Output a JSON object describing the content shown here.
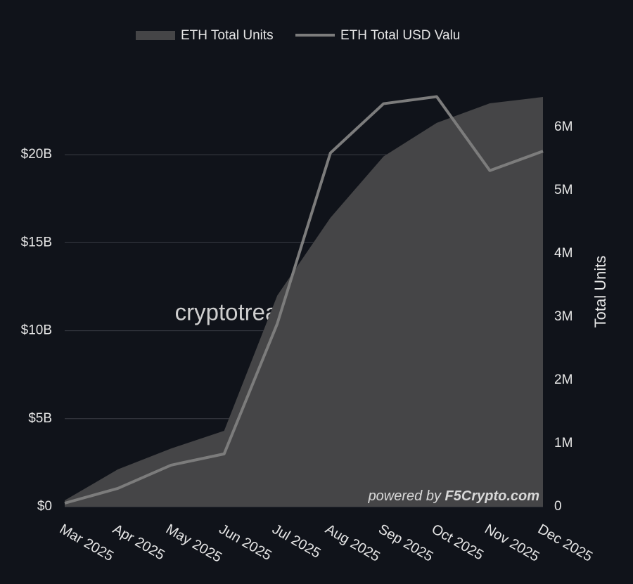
{
  "chart_data": {
    "type": "combo",
    "categories": [
      "Mar 2025",
      "Apr 2025",
      "May 2025",
      "Jun 2025",
      "Jul 2025",
      "Aug 2025",
      "Sep 2025",
      "Oct 2025",
      "Nov 2025",
      "Dec 2025"
    ],
    "series": [
      {
        "name": "ETH Total Units",
        "type": "area",
        "axis": "y2",
        "color": "#454547",
        "values": [
          100000,
          590000,
          920000,
          1200000,
          3340000,
          4570000,
          5540000,
          6070000,
          6380000,
          6480000
        ]
      },
      {
        "name": "ETH Total USD Valu",
        "type": "line",
        "color": "#7c7c7c",
        "values": [
          200000000,
          1040000000,
          2360000000,
          3000000000,
          10400000000,
          20100000000,
          22900000000,
          23300000000,
          19100000000,
          20200000000
        ]
      }
    ],
    "ylim": [
      0,
      24000000000
    ],
    "yticks": [
      {
        "value": 0,
        "label": "$0"
      },
      {
        "value": 5000000000,
        "label": "$5B"
      },
      {
        "value": 10000000000,
        "label": "$10B"
      },
      {
        "value": 15000000000,
        "label": "$15B"
      },
      {
        "value": 20000000000,
        "label": "$20B"
      }
    ],
    "y2lim": [
      0,
      6680000
    ],
    "y2ticks": [
      0,
      {
        "value": 1000000,
        "label": "1M"
      },
      {
        "value": 2000000,
        "label": "2M"
      },
      {
        "value": 3000000,
        "label": "3M"
      },
      {
        "value": 4000000,
        "label": "4M"
      },
      {
        "value": 5000000,
        "label": "5M"
      },
      {
        "value": 6000000,
        "label": "6M"
      }
    ],
    "y2label": "Total Units",
    "watermark": "cryptotreasurytracker.xyz",
    "credit_prefix": "powered by",
    "credit_brand": "F5Crypto.com",
    "grid": true
  }
}
